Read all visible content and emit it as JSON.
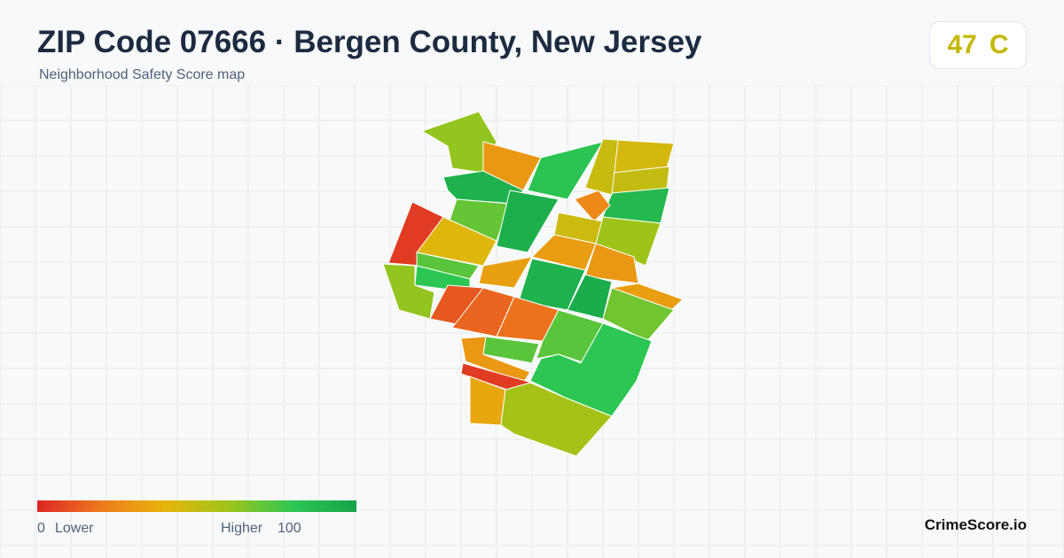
{
  "header": {
    "title": "ZIP Code 07666 · Bergen County, New Jersey",
    "subtitle": "Neighborhood Safety Score map"
  },
  "badge": {
    "score": "47",
    "grade": "C"
  },
  "legend": {
    "min": 0,
    "min_label": "Lower",
    "max_label": "Higher",
    "max": 100
  },
  "color_scale": [
    "#dc2626",
    "#ee7a1c",
    "#e6b40a",
    "#9ec41a",
    "#2dc653",
    "#16a34a"
  ],
  "region_scores": [
    62,
    30,
    82,
    45,
    50,
    88,
    48,
    92,
    5,
    70,
    93,
    42,
    25,
    47,
    60,
    32,
    30,
    32,
    72,
    80,
    62,
    33,
    92,
    95,
    12,
    15,
    18,
    68,
    72,
    80,
    72,
    30,
    5,
    35,
    58
  ],
  "brand": "CrimeScore.io"
}
